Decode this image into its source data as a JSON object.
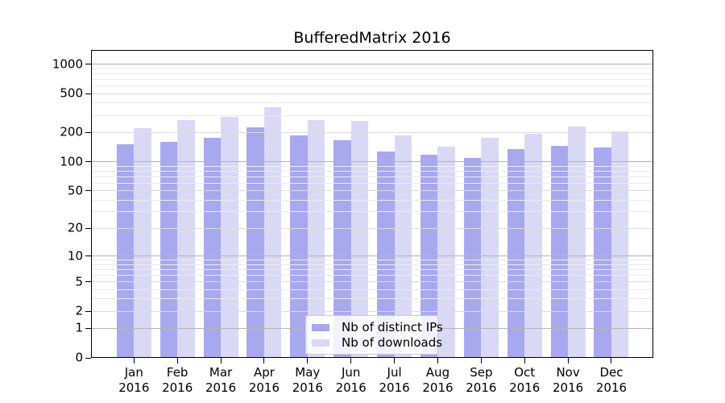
{
  "chart_data": {
    "type": "bar",
    "title": "BufferedMatrix 2016",
    "categories": [
      "Jan",
      "Feb",
      "Mar",
      "Apr",
      "May",
      "Jun",
      "Jul",
      "Aug",
      "Sep",
      "Oct",
      "Nov",
      "Dec"
    ],
    "x_sublabel": "2016",
    "series": [
      {
        "name": "Nb of distinct IPs",
        "color": "#a8a8ee",
        "values": [
          150,
          160,
          175,
          225,
          185,
          168,
          128,
          117,
          110,
          135,
          145,
          140
        ]
      },
      {
        "name": "Nb of downloads",
        "color": "#d9d9f6",
        "values": [
          220,
          270,
          290,
          363,
          266,
          265,
          187,
          142,
          175,
          193,
          232,
          207
        ]
      }
    ],
    "yscale": "log1p",
    "yticks": [
      0,
      1,
      2,
      5,
      10,
      20,
      50,
      100,
      200,
      500,
      1000
    ],
    "ylim": [
      0,
      1398
    ],
    "grid": true,
    "grid_minor_factors": [
      3,
      4,
      6,
      7,
      8,
      9
    ],
    "colors": {
      "grid_decade": "#b4b4b4",
      "grid_labeled": "#dcdcdc",
      "grid_minor": "#ebebeb",
      "axis": "#000000"
    },
    "legend_position": "lower-center"
  }
}
